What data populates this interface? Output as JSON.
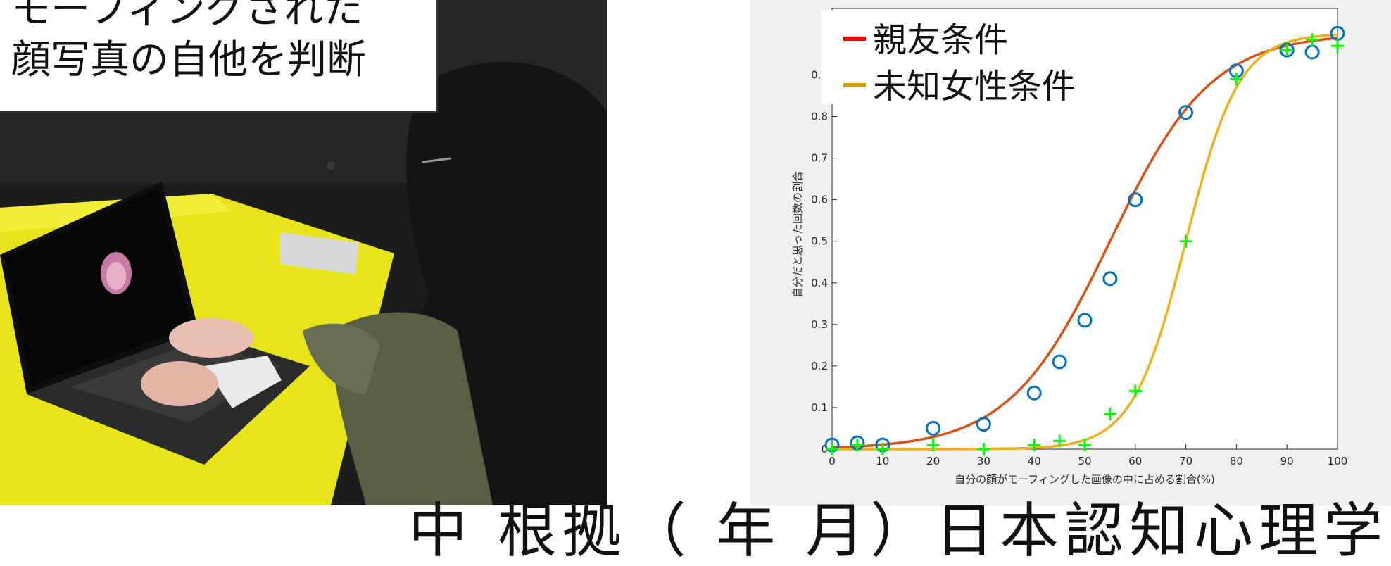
{
  "photo": {
    "caption_line1": "モーフィングされた",
    "caption_line2": "顔写真の自他を判断"
  },
  "bottom_text": "中 根拠（ 年 月）日本認知心理学会",
  "colors": {
    "friend_curve": "#d95319",
    "stranger_curve": "#edb120",
    "friend_marker": "#0072bd",
    "stranger_marker": "#00ff00",
    "legend_friend": "#ff0000",
    "legend_stranger": "#c8a000"
  },
  "chart_data": {
    "type": "line",
    "xlabel": "自分の顔がモーフィングした画像の中に占める割合(%)",
    "ylabel": "自分だと思った回数の割合",
    "xlim": [
      0,
      100
    ],
    "ylim": [
      0,
      1
    ],
    "x_ticks": [
      "0",
      "10",
      "20",
      "30",
      "40",
      "50",
      "60",
      "70",
      "80",
      "90",
      "100"
    ],
    "y_ticks": [
      "0",
      "0.1",
      "0.2",
      "0.3",
      "0.4",
      "0.5",
      "0.6",
      "0.7",
      "0.8",
      "0.9"
    ],
    "legend_position": "top-left",
    "series": [
      {
        "name": "親友条件",
        "marker": "circle",
        "x": [
          0,
          5,
          10,
          20,
          30,
          40,
          45,
          50,
          55,
          60,
          70,
          80,
          90,
          95,
          100
        ],
        "y": [
          0.01,
          0.015,
          0.01,
          0.05,
          0.06,
          0.135,
          0.21,
          0.31,
          0.41,
          0.6,
          0.81,
          0.91,
          0.96,
          0.955,
          1.0
        ],
        "fit_midpoint": 55,
        "fit_slope": 0.1
      },
      {
        "name": "未知女性条件",
        "marker": "plus",
        "x": [
          0,
          5,
          10,
          20,
          30,
          40,
          45,
          50,
          55,
          60,
          70,
          80,
          90,
          95,
          100
        ],
        "y": [
          0.0,
          0.01,
          0.0,
          0.01,
          0.0,
          0.01,
          0.02,
          0.01,
          0.085,
          0.14,
          0.5,
          0.89,
          0.96,
          0.985,
          0.97
        ],
        "fit_midpoint": 70,
        "fit_slope": 0.19
      }
    ]
  }
}
